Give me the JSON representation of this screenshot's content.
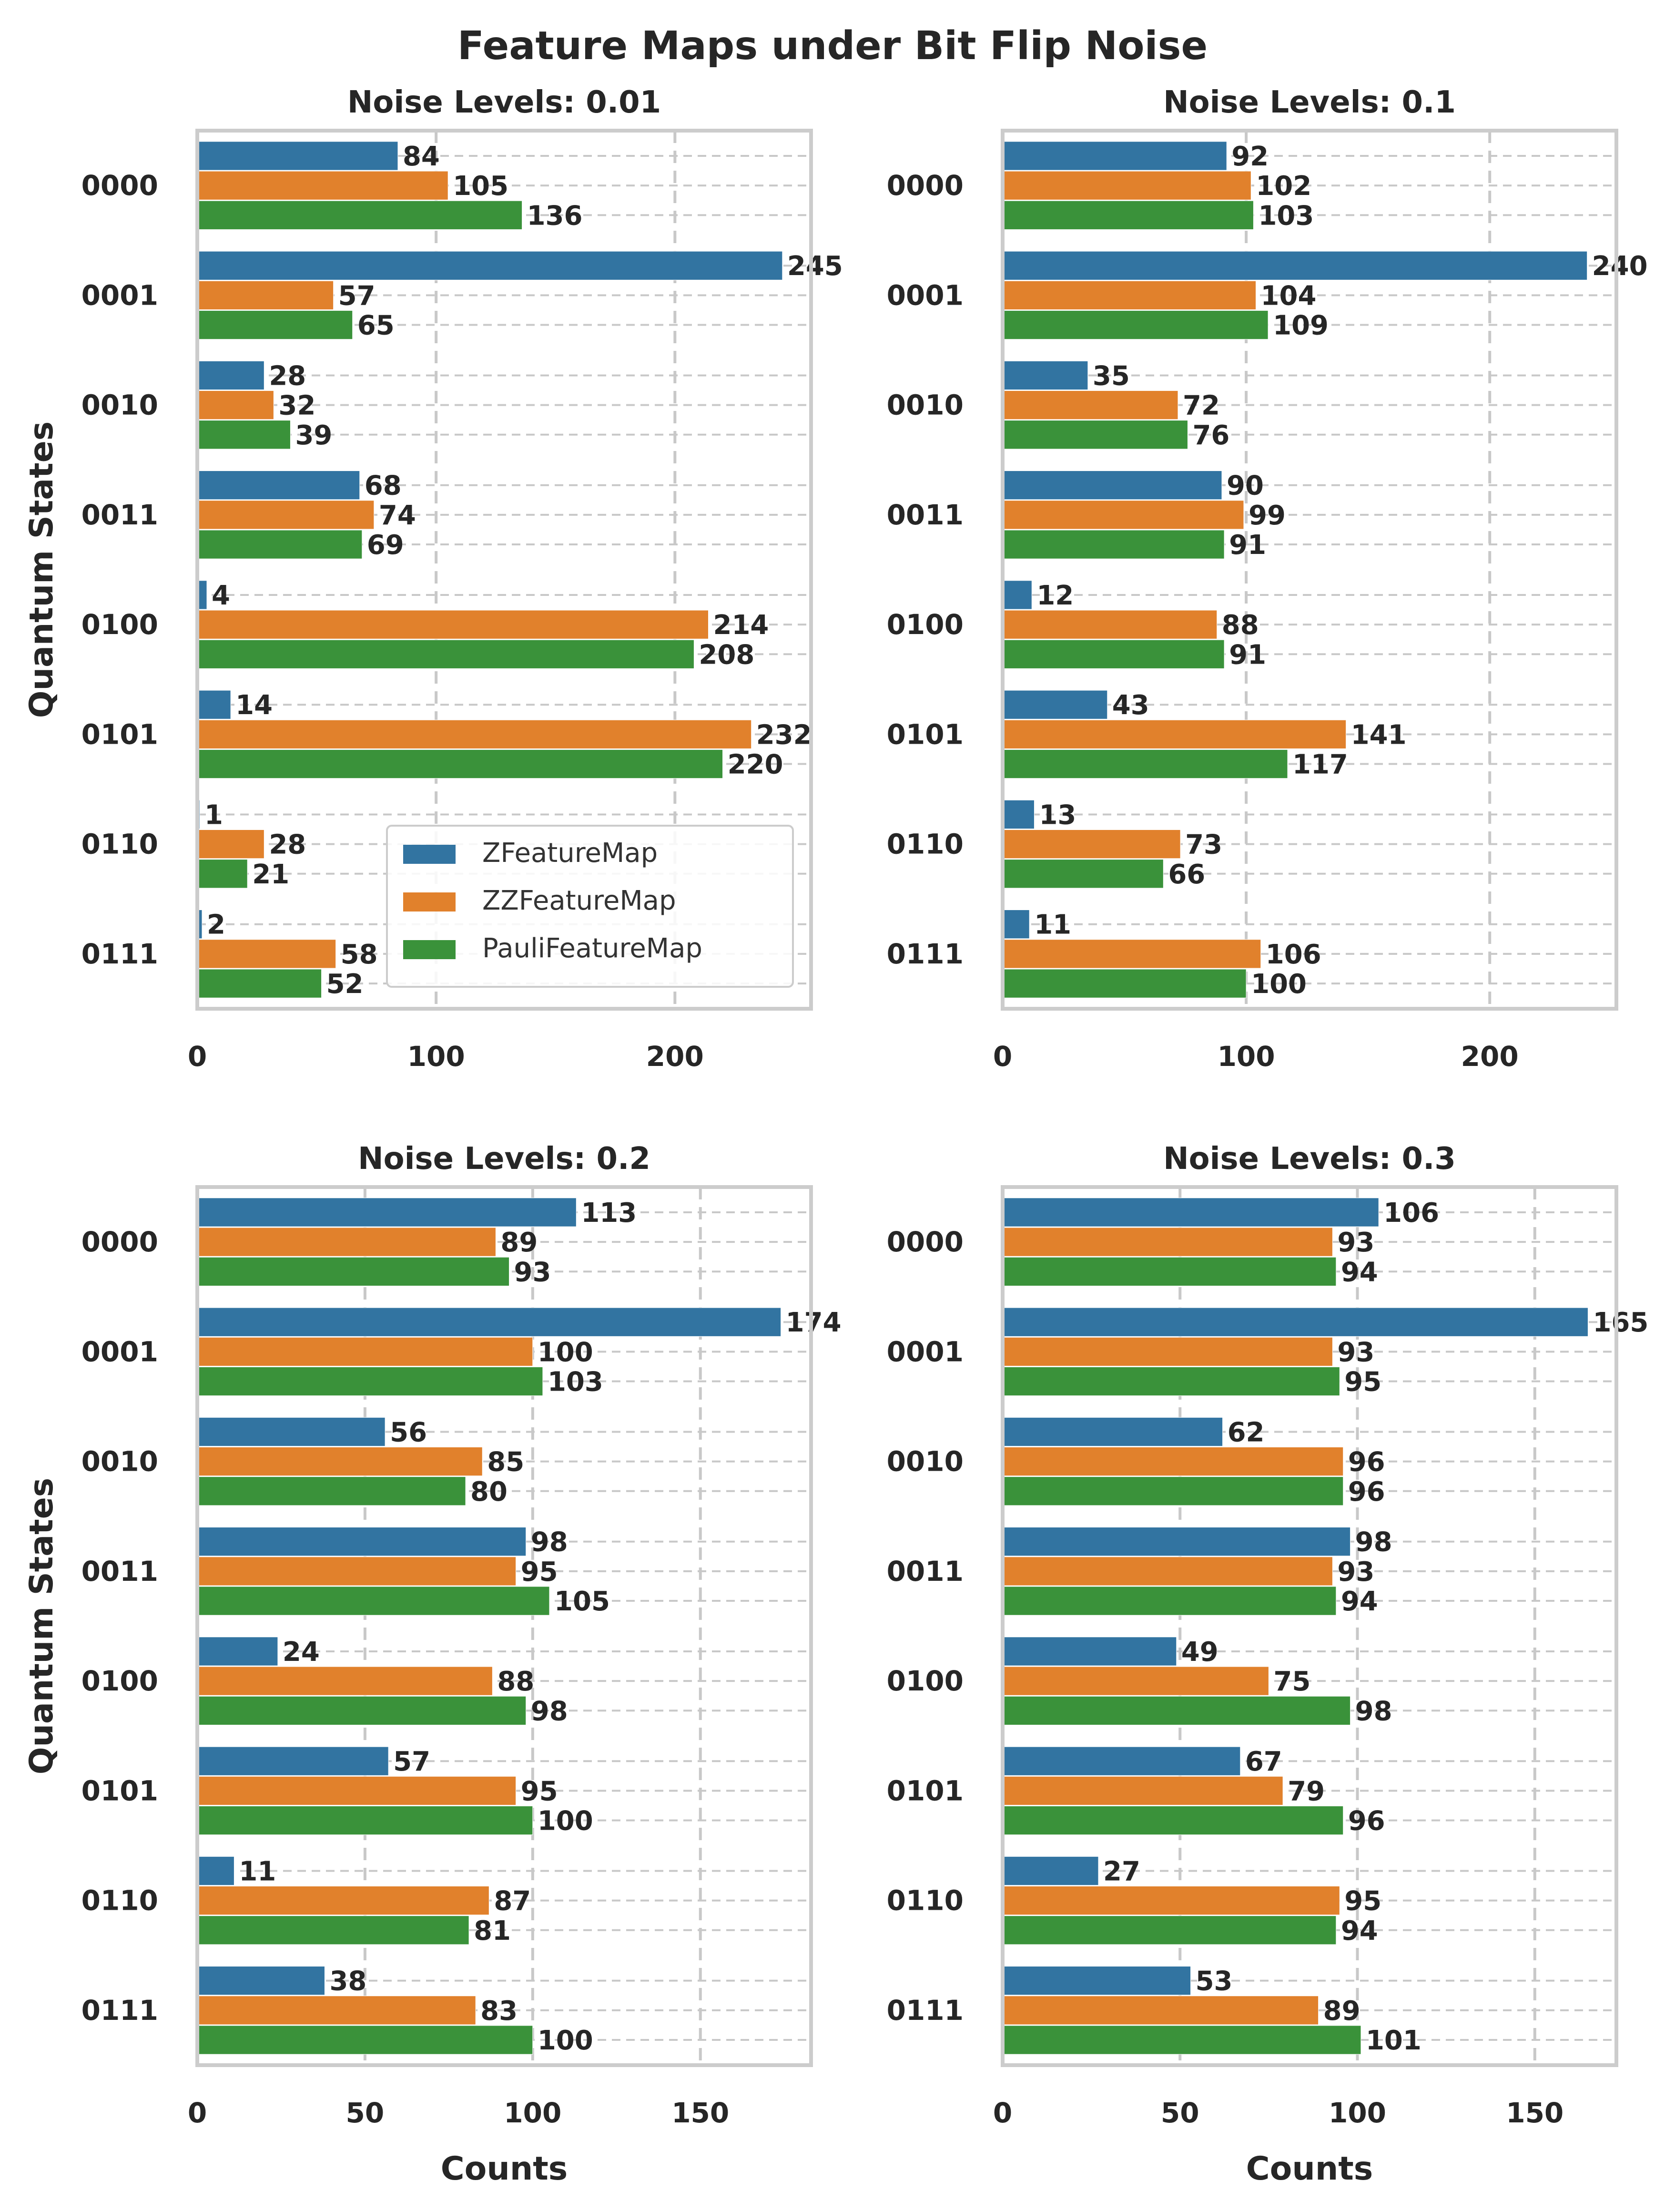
{
  "chart_data": {
    "type": "bar",
    "orientation": "horizontal",
    "title": "Feature Maps under Bit Flip Noise",
    "ylabel": "Quantum States",
    "xlabel": "Counts",
    "categories": [
      "0000",
      "0001",
      "0010",
      "0011",
      "0100",
      "0101",
      "0110",
      "0111"
    ],
    "legend": {
      "placement": "lower-right of top-left panel",
      "entries": [
        "ZFeatureMap",
        "ZZFeatureMap",
        "PauliFeatureMap"
      ]
    },
    "colors": {
      "ZFeatureMap": "#3274a1",
      "ZZFeatureMap": "#e1812c",
      "PauliFeatureMap": "#3a923a"
    },
    "panels": [
      {
        "title": "Noise Levels: 0.01",
        "xlim": [
          0,
          257
        ],
        "xticks": [
          0,
          100,
          200
        ],
        "series": [
          {
            "name": "ZFeatureMap",
            "values": [
              84,
              245,
              28,
              68,
              4,
              14,
              1,
              2
            ]
          },
          {
            "name": "ZZFeatureMap",
            "values": [
              105,
              57,
              32,
              74,
              214,
              232,
              28,
              58
            ]
          },
          {
            "name": "PauliFeatureMap",
            "values": [
              136,
              65,
              39,
              69,
              208,
              220,
              21,
              52
            ]
          }
        ]
      },
      {
        "title": "Noise Levels: 0.1",
        "xlim": [
          0,
          252
        ],
        "xticks": [
          0,
          100,
          200
        ],
        "series": [
          {
            "name": "ZFeatureMap",
            "values": [
              92,
              240,
              35,
              90,
              12,
              43,
              13,
              11
            ]
          },
          {
            "name": "ZZFeatureMap",
            "values": [
              102,
              104,
              72,
              99,
              88,
              141,
              73,
              106
            ]
          },
          {
            "name": "PauliFeatureMap",
            "values": [
              103,
              109,
              76,
              91,
              91,
              117,
              66,
              100
            ]
          }
        ]
      },
      {
        "title": "Noise Levels: 0.2",
        "xlim": [
          0,
          183
        ],
        "xticks": [
          0,
          50,
          100,
          150
        ],
        "series": [
          {
            "name": "ZFeatureMap",
            "values": [
              113,
              174,
              56,
              98,
              24,
              57,
              11,
              38
            ]
          },
          {
            "name": "ZZFeatureMap",
            "values": [
              89,
              100,
              85,
              95,
              88,
              95,
              87,
              83
            ]
          },
          {
            "name": "PauliFeatureMap",
            "values": [
              93,
              103,
              80,
              105,
              98,
              100,
              81,
              100
            ]
          }
        ]
      },
      {
        "title": "Noise Levels: 0.3",
        "xlim": [
          0,
          173
        ],
        "xticks": [
          0,
          50,
          100,
          150
        ],
        "series": [
          {
            "name": "ZFeatureMap",
            "values": [
              106,
              165,
              62,
              98,
              49,
              67,
              27,
              53
            ]
          },
          {
            "name": "ZZFeatureMap",
            "values": [
              93,
              93,
              96,
              93,
              75,
              79,
              95,
              89
            ]
          },
          {
            "name": "PauliFeatureMap",
            "values": [
              94,
              95,
              96,
              94,
              98,
              96,
              94,
              101
            ]
          }
        ]
      }
    ]
  }
}
